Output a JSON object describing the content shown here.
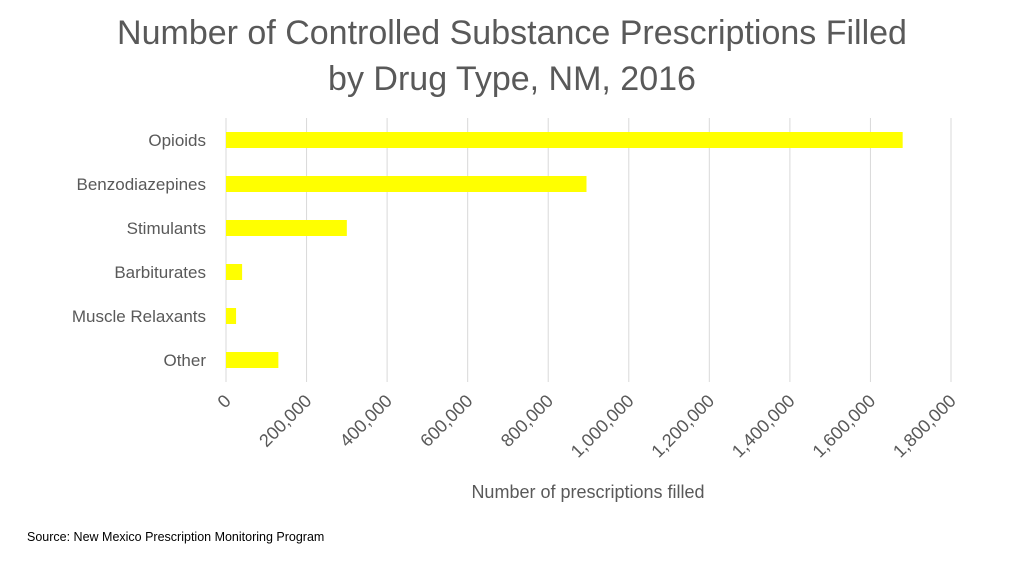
{
  "chart_data": {
    "type": "bar",
    "orientation": "horizontal",
    "title_lines": [
      "Number of Controlled Substance Prescriptions Filled",
      "by Drug Type, NM, 2016"
    ],
    "categories": [
      "Opioids",
      "Benzodiazepines",
      "Stimulants",
      "Barbiturates",
      "Muscle Relaxants",
      "Other"
    ],
    "values": [
      1680000,
      895000,
      300000,
      40000,
      25000,
      130000
    ],
    "x_ticks": [
      0,
      200000,
      400000,
      600000,
      800000,
      1000000,
      1200000,
      1400000,
      1600000,
      1800000
    ],
    "x_tick_labels": [
      "0",
      "200,000",
      "400,000",
      "600,000",
      "800,000",
      "1,000,000",
      "1,200,000",
      "1,400,000",
      "1,600,000",
      "1,800,000"
    ],
    "xlabel": "Number of prescriptions filled",
    "ylabel": "",
    "xlim": [
      0,
      1800000
    ],
    "grid": "vertical",
    "legend": "none",
    "bar_color": "#FFFF00",
    "grid_color": "#D9D9D9",
    "text_color": "#595959"
  },
  "source_note": "Source:  New Mexico Prescription Monitoring Program"
}
